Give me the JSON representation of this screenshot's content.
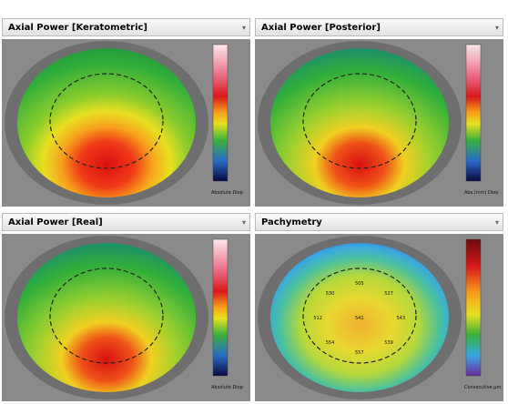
{
  "panels": [
    {
      "title": "Axial Power [Keratometric]",
      "caption": "Absolute Diop"
    },
    {
      "title": "Axial Power [Posterior]",
      "caption": "Abs.(mm) Diop"
    },
    {
      "title": "Axial Power [Real]",
      "caption": "Absolute Diop"
    },
    {
      "title": "Pachymetry",
      "caption": "Consecutive µm"
    }
  ],
  "pachymetry_values": [
    "543",
    "539",
    "557",
    "554",
    "512",
    "530",
    "505",
    "527",
    "541"
  ]
}
